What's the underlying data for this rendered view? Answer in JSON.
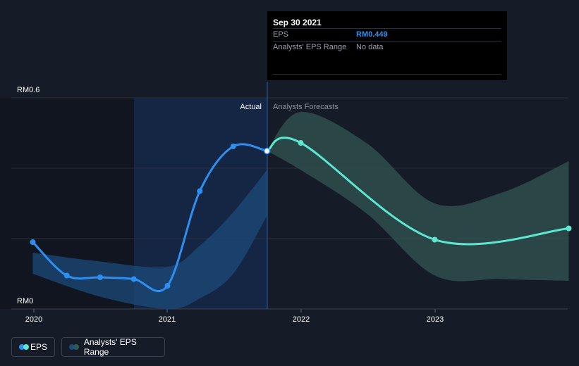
{
  "tooltip": {
    "date": "Sep 30 2021",
    "rows": [
      {
        "label": "EPS",
        "value": "RM0.449"
      },
      {
        "label": "Analysts' EPS Range",
        "value": "No data"
      }
    ]
  },
  "labels": {
    "actual": "Actual",
    "forecast": "Analysts Forecasts"
  },
  "legend": {
    "eps": "EPS",
    "range": "Analysts' EPS Range"
  },
  "colors": {
    "background": "#151b27",
    "eps_line": "#2d8ff0",
    "forecast_line": "#5ce8d0",
    "forecast_band": "#2e4d4d",
    "past_band": "#1c4a7a",
    "highlight": "#14284a"
  },
  "chart_data": {
    "type": "line",
    "x_ticks": [
      "2020",
      "2021",
      "2022",
      "2023"
    ],
    "y_ticks": [
      "RM0",
      "RM0.6"
    ],
    "ylim": [
      0,
      0.6
    ],
    "xlim": [
      "2020-01-01",
      "2023-12-31"
    ],
    "grid": true,
    "legend_position": "bottom-left",
    "series": [
      {
        "name": "EPS",
        "type": "line",
        "points": [
          {
            "x": "2019-12-31",
            "y": 0.19
          },
          {
            "x": "2020-03-31",
            "y": 0.095
          },
          {
            "x": "2020-06-30",
            "y": 0.09
          },
          {
            "x": "2020-09-30",
            "y": 0.085
          },
          {
            "x": "2020-12-31",
            "y": 0.066
          },
          {
            "x": "2021-03-31",
            "y": 0.335
          },
          {
            "x": "2021-06-30",
            "y": 0.462
          },
          {
            "x": "2021-09-30",
            "y": 0.449
          }
        ]
      },
      {
        "name": "Analysts' EPS Range",
        "type": "line",
        "points": [
          {
            "x": "2021-09-30",
            "y": 0.449
          },
          {
            "x": "2021-12-31",
            "y": 0.472
          },
          {
            "x": "2022-12-31",
            "y": 0.197
          },
          {
            "x": "2023-12-31",
            "y": 0.229
          }
        ]
      }
    ],
    "bands": [
      {
        "kind": "past",
        "points": [
          {
            "x": "2019-12-31",
            "lo": 0.1,
            "hi": 0.16
          },
          {
            "x": "2020-06-30",
            "lo": 0.035,
            "hi": 0.135
          },
          {
            "x": "2020-12-31",
            "lo": 0.0,
            "hi": 0.12
          },
          {
            "x": "2021-03-31",
            "lo": 0.03,
            "hi": 0.18
          },
          {
            "x": "2021-06-30",
            "lo": 0.1,
            "hi": 0.275
          },
          {
            "x": "2021-09-30",
            "lo": 0.265,
            "hi": 0.395
          }
        ]
      },
      {
        "kind": "forecast",
        "points": [
          {
            "x": "2021-09-30",
            "lo": 0.449,
            "hi": 0.449
          },
          {
            "x": "2021-12-31",
            "lo": 0.395,
            "hi": 0.56
          },
          {
            "x": "2022-06-30",
            "lo": 0.27,
            "hi": 0.47
          },
          {
            "x": "2022-12-31",
            "lo": 0.095,
            "hi": 0.3
          },
          {
            "x": "2023-06-30",
            "lo": 0.085,
            "hi": 0.33
          },
          {
            "x": "2023-12-31",
            "lo": 0.08,
            "hi": 0.42
          }
        ]
      }
    ]
  }
}
